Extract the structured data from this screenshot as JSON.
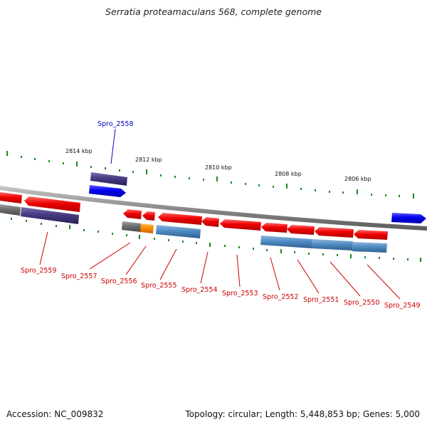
{
  "title": "Serratia proteamaculans 568, complete genome",
  "footer": {
    "accession": "Accession: NC_009832",
    "summary": "Topology: circular; Length: 5,448,853 bp; Genes: 5,000"
  },
  "colors": {
    "forward_gene": "#e60000",
    "reverse_gene": "#4682b4",
    "highlight_forward": "#0000ff",
    "highlight_reverse": "#3f3577",
    "pseudo": "#6e6e6e",
    "rna": "#ff8c00",
    "backbone": "#888888",
    "tick": "#1a8a1a",
    "label_red": "#cc0000",
    "label_blue": "#0000cc"
  },
  "ruler_labels": [
    "2814 kbp",
    "2812 kbp",
    "2810 kbp",
    "2808 kbp",
    "2806 kbp"
  ],
  "gene_labels": [
    {
      "name": "Spro_2558",
      "color": "blue"
    },
    {
      "name": "Spro_2559",
      "color": "red"
    },
    {
      "name": "Spro_2557",
      "color": "red"
    },
    {
      "name": "Spro_2556",
      "color": "red"
    },
    {
      "name": "Spro_2555",
      "color": "red"
    },
    {
      "name": "Spro_2554",
      "color": "red"
    },
    {
      "name": "Spro_2553",
      "color": "red"
    },
    {
      "name": "Spro_2552",
      "color": "red"
    },
    {
      "name": "Spro_2551",
      "color": "red"
    },
    {
      "name": "Spro_2550",
      "color": "red"
    },
    {
      "name": "Spro_2549",
      "color": "red"
    }
  ]
}
